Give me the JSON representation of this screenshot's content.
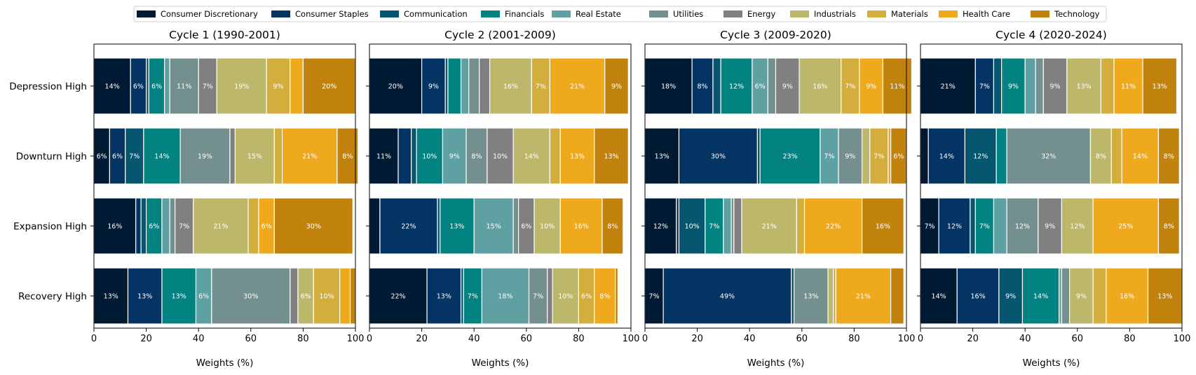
{
  "chart_data": {
    "type": "bar",
    "orientation": "horizontal",
    "stacked": true,
    "xlim": [
      0,
      100
    ],
    "xticks": [
      0,
      20,
      40,
      60,
      80,
      100
    ],
    "grid": false,
    "legend_position": "top",
    "categories": [
      "Depression High",
      "Downturn High",
      "Expansion High",
      "Recovery High"
    ],
    "sectors": [
      {
        "name": "Consumer Discretionary",
        "color": "#011a33"
      },
      {
        "name": "Consumer Staples",
        "color": "#033464"
      },
      {
        "name": "Communication",
        "color": "#05566e"
      },
      {
        "name": "Financials",
        "color": "#028280"
      },
      {
        "name": "Real Estate",
        "color": "#5fa0a3"
      },
      {
        "name": "Utilities",
        "color": "#738f8e"
      },
      {
        "name": "Energy",
        "color": "#808080"
      },
      {
        "name": "Industrials",
        "color": "#bdb76b"
      },
      {
        "name": "Materials",
        "color": "#d4ae3d"
      },
      {
        "name": "Health Care",
        "color": "#eea91c"
      },
      {
        "name": "Technology",
        "color": "#c2830e"
      }
    ],
    "panels": [
      {
        "title": "Cycle 1 (1990-2001)",
        "xlabel": "Weights (%)",
        "series": [
          [
            14,
            6,
            1,
            6,
            2,
            11,
            7,
            19,
            9,
            5,
            20
          ],
          [
            6,
            6,
            7,
            14,
            0,
            19,
            2,
            15,
            3,
            21,
            8
          ],
          [
            16,
            2,
            2,
            6,
            3,
            2,
            7,
            21,
            4,
            6,
            30
          ],
          [
            13,
            13,
            0,
            13,
            6,
            30,
            3,
            6,
            10,
            4,
            2
          ]
        ]
      },
      {
        "title": "Cycle 2 (2001-2009)",
        "xlabel": "Weights (%)",
        "series": [
          [
            20,
            9,
            1,
            5,
            3,
            4,
            4,
            16,
            7,
            21,
            9
          ],
          [
            11,
            5,
            2,
            10,
            9,
            8,
            10,
            14,
            4,
            13,
            13
          ],
          [
            4,
            22,
            1,
            13,
            15,
            2,
            6,
            10,
            0,
            16,
            8
          ],
          [
            22,
            13,
            1,
            7,
            18,
            7,
            2,
            10,
            6,
            8,
            1
          ]
        ]
      },
      {
        "title": "Cycle 3 (2009-2020)",
        "xlabel": "Weights (%)",
        "series": [
          [
            18,
            8,
            3,
            12,
            6,
            3,
            9,
            16,
            7,
            9,
            11
          ],
          [
            13,
            30,
            1,
            23,
            7,
            9,
            0,
            3,
            7,
            1,
            6
          ],
          [
            12,
            1,
            10,
            7,
            3,
            1,
            3,
            21,
            3,
            22,
            16
          ],
          [
            7,
            49,
            1,
            0,
            0,
            13,
            0,
            2,
            1,
            21,
            5
          ]
        ]
      },
      {
        "title": "Cycle 4 (2020-2024)",
        "xlabel": "Weights (%)",
        "series": [
          [
            21,
            7,
            3,
            9,
            4,
            3,
            9,
            13,
            5,
            11,
            13
          ],
          [
            3,
            14,
            12,
            4,
            0,
            32,
            0,
            8,
            4,
            14,
            8
          ],
          [
            7,
            12,
            2,
            7,
            5,
            12,
            9,
            12,
            0,
            25,
            8
          ],
          [
            14,
            16,
            9,
            14,
            1,
            3,
            0,
            9,
            5,
            16,
            13
          ]
        ]
      }
    ]
  }
}
